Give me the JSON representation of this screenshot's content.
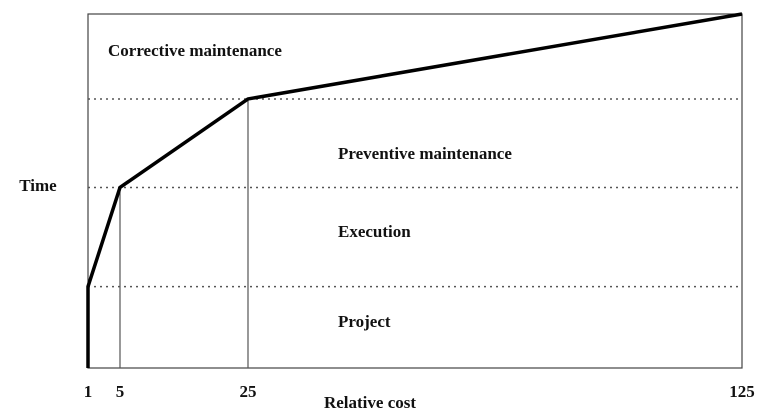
{
  "chart_data": {
    "type": "line",
    "xlabel": "Relative cost",
    "ylabel": "Time",
    "x": [
      1,
      1,
      5,
      25,
      125
    ],
    "series": [
      {
        "color": "#000000",
        "values": [
          0,
          23,
          51,
          76,
          100
        ]
      }
    ],
    "xticks": [
      1,
      5,
      25,
      125
    ],
    "ylim": [
      0,
      100
    ],
    "annotations": [
      {
        "text": "Corrective maintenance"
      },
      {
        "text": "Preventive maintenance"
      },
      {
        "text": "Execution"
      },
      {
        "text": "Project"
      }
    ]
  }
}
